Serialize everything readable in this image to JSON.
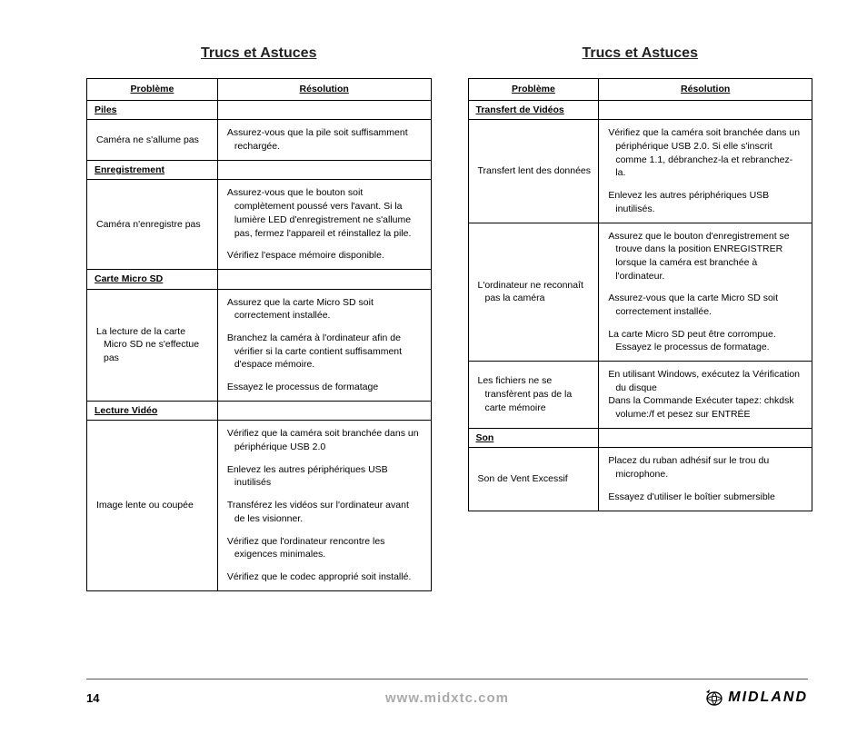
{
  "section_title": "Trucs et Astuces",
  "headers": {
    "problem": "Problème",
    "resolution": "Résolution"
  },
  "left": [
    {
      "type": "cat",
      "label": "Piles"
    },
    {
      "type": "row",
      "problem": "Caméra ne s'allume pas",
      "resolutions": [
        "Assurez-vous que la pile soit suffisamment rechargée."
      ]
    },
    {
      "type": "cat",
      "label": "Enregistrement"
    },
    {
      "type": "row",
      "problem": "Caméra n'enregistre pas",
      "resolutions": [
        "Assurez-vous que le bouton soit complètement poussé vers l'avant. Si la lumière LED d'enregistrement ne s'allume pas, fermez l'appareil et réinstallez la pile.",
        "Vérifiez l'espace mémoire disponible."
      ]
    },
    {
      "type": "cat",
      "label": "Carte Micro SD"
    },
    {
      "type": "row",
      "problem": "La lecture de la carte Micro SD ne s'effectue pas",
      "resolutions": [
        "Assurez que la carte Micro SD soit correctement installée.",
        "Branchez la caméra à l'ordinateur afin de vérifier si la carte contient suffisamment d'espace mémoire.",
        "Essayez le processus de formatage"
      ]
    },
    {
      "type": "cat",
      "label": "Lecture Vidéo"
    },
    {
      "type": "row",
      "problem": "Image lente ou coupée",
      "resolutions": [
        "Vérifiez que la caméra soit branchée dans un périphérique USB 2.0",
        "Enlevez les autres périphériques USB inutilisés",
        "Transférez les vidéos sur l'ordinateur avant de les visionner.",
        "Vérifiez que l'ordinateur rencontre les exigences minimales.",
        "Vérifiez que le codec approprié soit installé."
      ]
    }
  ],
  "right": [
    {
      "type": "cat",
      "label": "Transfert de Vidéos"
    },
    {
      "type": "row",
      "problem": "Transfert lent des données",
      "resolutions": [
        "Vérifiez que la caméra soit branchée dans un périphérique USB 2.0. Si elle s'inscrit comme 1.1, débranchez-la et rebranchez-la.",
        "Enlevez les autres périphériques USB inutilisés."
      ]
    },
    {
      "type": "row",
      "problem": "L'ordinateur ne reconnaît pas la caméra",
      "resolutions": [
        "Assurez que le bouton d'enregistrement se trouve dans la position ENREGISTRER lorsque la caméra est branchée à l'ordinateur.",
        "Assurez-vous que la carte Micro SD soit correctement installée.",
        "La carte Micro SD peut être corrompue. Essayez le processus de formatage."
      ]
    },
    {
      "type": "row",
      "problem": "Les fichiers ne se transfèrent pas de la carte mémoire",
      "resolutions": [
        "En utilisant Windows, exécutez la Vérification du disque",
        "Dans la Commande Exécuter tapez: chkdsk volume:/f et pesez sur ENTRÉE"
      ],
      "nogap": true
    },
    {
      "type": "cat",
      "label": "Son"
    },
    {
      "type": "row",
      "problem": "Son de Vent Excessif",
      "resolutions": [
        "Placez du ruban adhésif sur le trou du microphone.",
        "Essayez d'utiliser le boîtier submersible"
      ]
    }
  ],
  "footer": {
    "page": "14",
    "url": "www.midxtc.com",
    "brand": "MIDLAND"
  }
}
